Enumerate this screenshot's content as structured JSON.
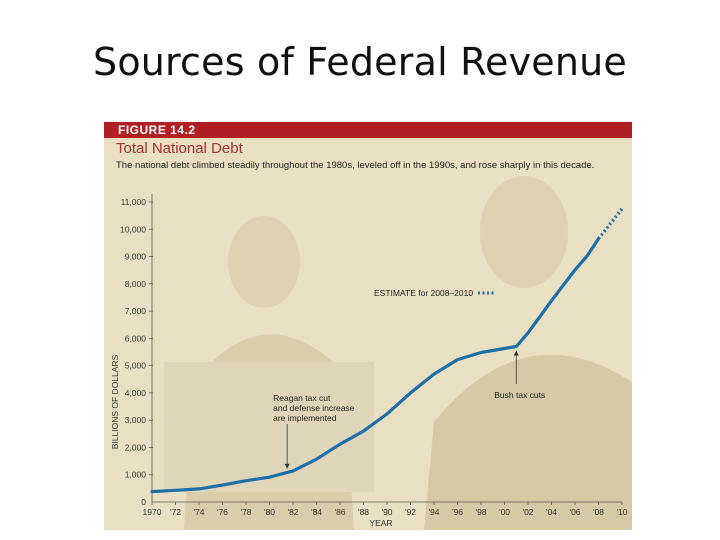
{
  "slide": {
    "title": "Sources of Federal Revenue"
  },
  "figure": {
    "label": "FIGURE 14.2",
    "title": "Total National Debt",
    "subtitle": "The national debt climbed steadily throughout the 1980s, leveled off in the 1990s, and rose sharply in this decade."
  },
  "colors": {
    "line": "#1e6fa8",
    "header": "#b01f24",
    "background": "#e9e0c4"
  },
  "chart_data": {
    "type": "line",
    "xlabel": "YEAR",
    "ylabel": "BILLIONS OF DOLLARS",
    "xlim": [
      1970,
      2010
    ],
    "ylim": [
      0,
      11000
    ],
    "x_ticks": [
      1970,
      1972,
      1974,
      1976,
      1978,
      1980,
      1982,
      1984,
      1986,
      1988,
      1990,
      1992,
      1994,
      1996,
      1998,
      2000,
      2002,
      2004,
      2006,
      2008,
      2010
    ],
    "x_tick_labels": [
      "1970",
      "'72",
      "'74",
      "'76",
      "'78",
      "'80",
      "'82",
      "'84",
      "'86",
      "'88",
      "'90",
      "'92",
      "'94",
      "'96",
      "'98",
      "'00",
      "'02",
      "'04",
      "'06",
      "'08",
      "'10"
    ],
    "y_ticks": [
      1000,
      2000,
      3000,
      4000,
      5000,
      6000,
      7000,
      8000,
      9000,
      10000,
      11000
    ],
    "y_tick_labels": [
      "1,000",
      "2,000",
      "3,000",
      "4,000",
      "5,000",
      "6,000",
      "7,000",
      "8,000",
      "9,000",
      "10,000",
      "11,000"
    ],
    "series": [
      {
        "x": [
          1970,
          1972,
          1974,
          1976,
          1978,
          1980,
          1982,
          1984,
          1986,
          1988,
          1990,
          1992,
          1994,
          1996,
          1998,
          2000,
          2001,
          2002,
          2004,
          2006,
          2007,
          2008
        ],
        "values": [
          380,
          430,
          480,
          620,
          780,
          910,
          1140,
          1570,
          2120,
          2600,
          3230,
          4000,
          4690,
          5220,
          5480,
          5630,
          5700,
          6200,
          7380,
          8510,
          9010,
          9650
        ]
      },
      {
        "name": "ESTIMATE for 2008–2010",
        "style": "dotted",
        "x": [
          2008,
          2009,
          2010
        ],
        "values": [
          9650,
          10200,
          10750
        ]
      }
    ],
    "annotations": [
      {
        "lines": [
          "Reagan tax cut",
          "and defense increase",
          "are implemented"
        ],
        "x": 1981.5,
        "y": 1070
      },
      {
        "lines": [
          "Bush tax cuts"
        ],
        "x": 2001,
        "y": 5700
      },
      {
        "lines": [
          "ESTIMATE for 2008–2010"
        ],
        "x": 2008,
        "y": 9650
      }
    ]
  }
}
